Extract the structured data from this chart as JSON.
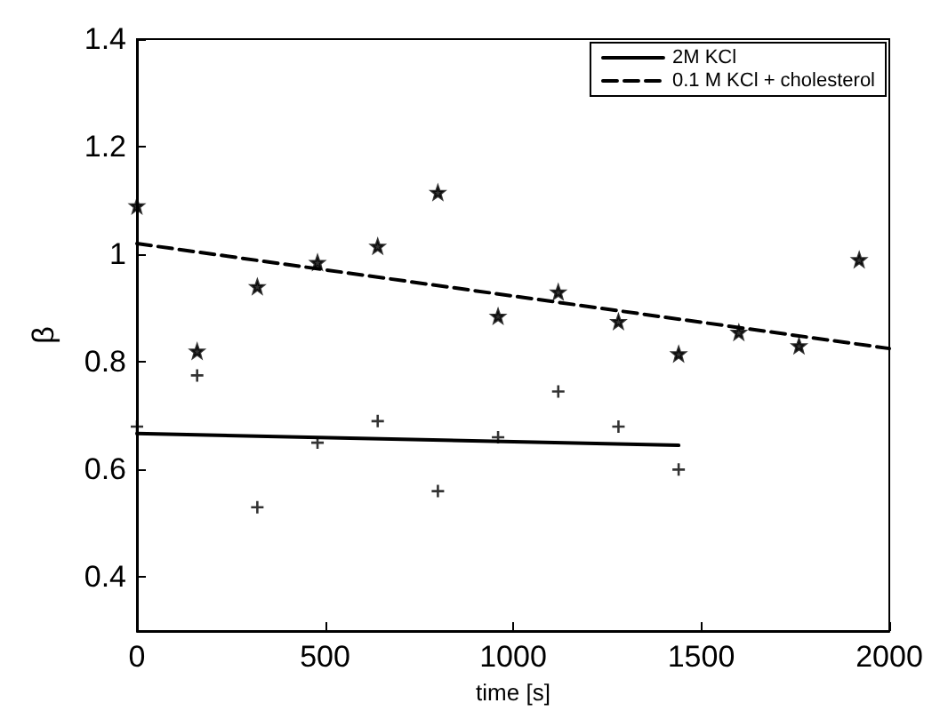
{
  "chart_data": {
    "type": "scatter",
    "xlabel": "time [s]",
    "ylabel": "β",
    "xlim": [
      0,
      2000
    ],
    "xticks": [
      0,
      500,
      1000,
      1500,
      2000
    ],
    "ylim": [
      0.3,
      1.4
    ],
    "yticks": [
      0.4,
      0.6,
      0.8,
      1,
      1.2,
      1.4
    ],
    "grid": false,
    "legend": "top right",
    "series": [
      {
        "marker": "cross",
        "color": "#000000",
        "x": [
          0,
          160,
          320,
          480,
          640,
          800,
          960,
          1120,
          1280,
          1440
        ],
        "values": [
          0.68,
          0.775,
          0.53,
          0.65,
          0.69,
          0.56,
          0.66,
          0.745,
          0.68,
          0.6
        ]
      },
      {
        "marker": "star",
        "color": "#000000",
        "x": [
          0,
          160,
          320,
          480,
          640,
          800,
          960,
          1120,
          1280,
          1440,
          1600,
          1760,
          1920
        ],
        "values": [
          1.09,
          0.82,
          0.94,
          0.985,
          1.015,
          1.115,
          0.885,
          0.93,
          0.875,
          0.815,
          0.855,
          0.83,
          0.99
        ]
      },
      {
        "type": "line",
        "name": "2M KCl",
        "color": "#000000",
        "line_style": "solid",
        "marker": "none",
        "x": [
          0,
          1440
        ],
        "values": [
          0.667,
          0.645
        ]
      },
      {
        "type": "line",
        "name": "0.1 M KCl + cholesterol",
        "color": "#000000",
        "line_style": "dashed",
        "marker": "none",
        "x": [
          0,
          2000
        ],
        "values": [
          1.02,
          0.825
        ]
      }
    ]
  }
}
